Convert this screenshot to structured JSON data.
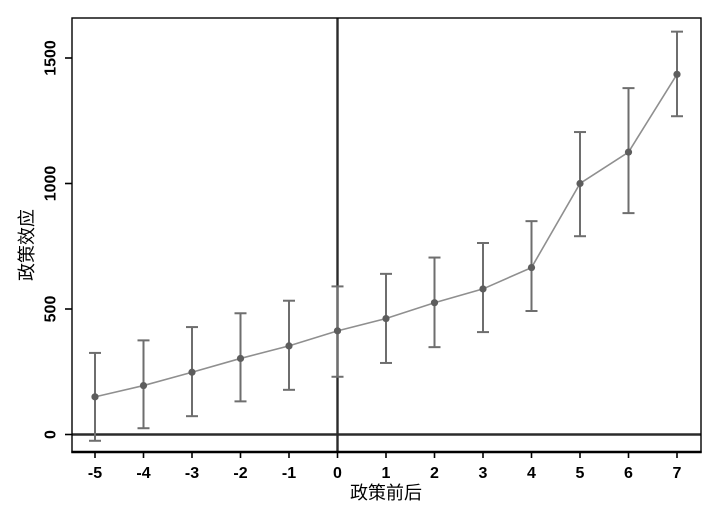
{
  "chart_data": {
    "type": "line",
    "variant": "event-study-with-error-bars",
    "title": "",
    "xlabel": "政策前后",
    "ylabel": "政策效应",
    "x": [
      -5,
      -4,
      -3,
      -2,
      -1,
      0,
      1,
      2,
      3,
      4,
      5,
      6,
      7
    ],
    "series": [
      {
        "name": "政策效应",
        "values": [
          150,
          195,
          248,
          303,
          353,
          413,
          462,
          525,
          580,
          665,
          1000,
          1125,
          1435
        ],
        "ci_lower": [
          -25,
          25,
          73,
          132,
          178,
          230,
          285,
          348,
          408,
          492,
          790,
          882,
          1268
        ],
        "ci_upper": [
          325,
          375,
          428,
          483,
          533,
          590,
          640,
          705,
          763,
          850,
          1205,
          1380,
          1605
        ]
      }
    ],
    "x_ticks": [
      -5,
      -4,
      -3,
      -2,
      -1,
      0,
      1,
      2,
      3,
      4,
      5,
      6,
      7
    ],
    "y_ticks": [
      0,
      500,
      1000,
      1500
    ],
    "xlim": [
      -5.5,
      7.5
    ],
    "ylim": [
      -66,
      1655
    ],
    "grid": false,
    "legend_position": "none",
    "reference_lines": [
      {
        "orientation": "vertical",
        "value": 0
      },
      {
        "orientation": "horizontal",
        "value": 0
      }
    ],
    "colors": {
      "marker": "#5d5d5d",
      "error_bar": "#6e6e6e",
      "line": "#8f8f8f",
      "axis": "#000000",
      "reference_line": "#2b2b2b",
      "background": "#ffffff",
      "tick_label": "#000000"
    }
  }
}
